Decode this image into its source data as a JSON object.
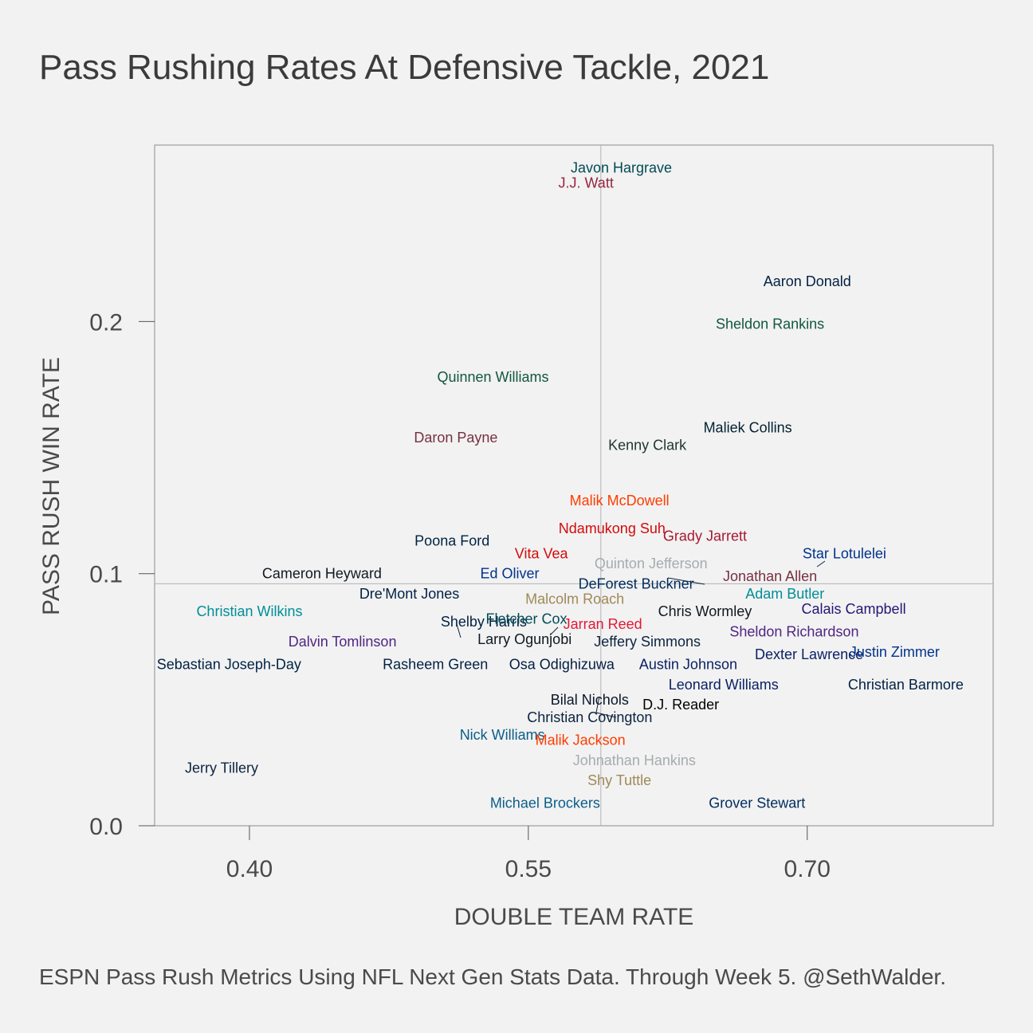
{
  "title": "Pass Rushing Rates At Defensive Tackle, 2021",
  "caption": "ESPN Pass Rush Metrics Using NFL Next Gen Stats Data. Through Week 5. @SethWalder.",
  "chart_data": {
    "type": "scatter",
    "title": "Pass Rushing Rates At Defensive Tackle, 2021",
    "xlabel": "DOUBLE TEAM RATE",
    "ylabel": "PASS RUSH WIN RATE",
    "xlim": [
      0.349,
      0.8
    ],
    "ylim": [
      0.0,
      0.27
    ],
    "xticks": [
      0.4,
      0.55,
      0.7
    ],
    "xtick_labels": [
      "0.40",
      "0.55",
      "0.70"
    ],
    "yticks": [
      0.0,
      0.1,
      0.2
    ],
    "ytick_labels": [
      "0.0",
      "0.1",
      "0.2"
    ],
    "reference_lines": {
      "x": 0.589,
      "y": 0.096
    },
    "points": [
      {
        "name": "Javon Hargrave",
        "x": 0.6,
        "y": 0.261,
        "color": "#004C54"
      },
      {
        "name": "J.J. Watt",
        "x": 0.581,
        "y": 0.255,
        "color": "#97233F"
      },
      {
        "name": "Aaron Donald",
        "x": 0.7,
        "y": 0.216,
        "color": "#002244"
      },
      {
        "name": "Sheldon Rankins",
        "x": 0.68,
        "y": 0.199,
        "color": "#125740"
      },
      {
        "name": "Quinnen Williams",
        "x": 0.531,
        "y": 0.178,
        "color": "#125740"
      },
      {
        "name": "Maliek Collins",
        "x": 0.668,
        "y": 0.158,
        "color": "#03202F"
      },
      {
        "name": "Daron Payne",
        "x": 0.511,
        "y": 0.154,
        "color": "#773141"
      },
      {
        "name": "Kenny Clark",
        "x": 0.614,
        "y": 0.151,
        "color": "#203731"
      },
      {
        "name": "Malik McDowell",
        "x": 0.599,
        "y": 0.129,
        "color": "#FF3C00"
      },
      {
        "name": "Ndamukong Suh",
        "x": 0.595,
        "y": 0.118,
        "color": "#D50A0A"
      },
      {
        "name": "Grady Jarrett",
        "x": 0.645,
        "y": 0.115,
        "color": "#A71930"
      },
      {
        "name": "Poona Ford",
        "x": 0.509,
        "y": 0.113,
        "color": "#002244"
      },
      {
        "name": "Vita Vea",
        "x": 0.557,
        "y": 0.108,
        "color": "#D50A0A"
      },
      {
        "name": "Quinton Jefferson",
        "x": 0.616,
        "y": 0.104,
        "color": "#A5ACAF"
      },
      {
        "name": "Star Lotulelei",
        "x": 0.72,
        "y": 0.108,
        "color": "#00338D"
      },
      {
        "name": "Cameron Heyward",
        "x": 0.439,
        "y": 0.1,
        "color": "#101820"
      },
      {
        "name": "Ed Oliver",
        "x": 0.54,
        "y": 0.1,
        "color": "#00338D"
      },
      {
        "name": "Jonathan Allen",
        "x": 0.68,
        "y": 0.099,
        "color": "#773141"
      },
      {
        "name": "DeForest Buckner",
        "x": 0.608,
        "y": 0.096,
        "color": "#002C5F"
      },
      {
        "name": "Dre'Mont Jones",
        "x": 0.486,
        "y": 0.092,
        "color": "#002244"
      },
      {
        "name": "Adam Butler",
        "x": 0.688,
        "y": 0.092,
        "color": "#008E97"
      },
      {
        "name": "Malcolm Roach",
        "x": 0.575,
        "y": 0.09,
        "color": "#9F8958"
      },
      {
        "name": "Christian Wilkins",
        "x": 0.4,
        "y": 0.085,
        "color": "#008E97"
      },
      {
        "name": "Chris Wormley",
        "x": 0.645,
        "y": 0.085,
        "color": "#101820"
      },
      {
        "name": "Calais Campbell",
        "x": 0.725,
        "y": 0.086,
        "color": "#241773"
      },
      {
        "name": "Shelby Harris",
        "x": 0.526,
        "y": 0.081,
        "color": "#002244"
      },
      {
        "name": "Fletcher Cox",
        "x": 0.549,
        "y": 0.082,
        "color": "#004C54"
      },
      {
        "name": "Jarran Reed",
        "x": 0.59,
        "y": 0.08,
        "color": "#E31837"
      },
      {
        "name": "Larry Ogunjobi",
        "x": 0.548,
        "y": 0.074,
        "color": "#101820"
      },
      {
        "name": "Dalvin Tomlinson",
        "x": 0.45,
        "y": 0.073,
        "color": "#4F2683"
      },
      {
        "name": "Sheldon Richardson",
        "x": 0.693,
        "y": 0.077,
        "color": "#4F2683"
      },
      {
        "name": "Jeffery Simmons",
        "x": 0.614,
        "y": 0.073,
        "color": "#0C2340"
      },
      {
        "name": "Dexter Lawrence",
        "x": 0.701,
        "y": 0.068,
        "color": "#0B2265"
      },
      {
        "name": "Justin Zimmer",
        "x": 0.747,
        "y": 0.069,
        "color": "#00338D"
      },
      {
        "name": "Sebastian Joseph-Day",
        "x": 0.389,
        "y": 0.064,
        "color": "#002244"
      },
      {
        "name": "Rasheem Green",
        "x": 0.5,
        "y": 0.064,
        "color": "#002244"
      },
      {
        "name": "Osa Odighizuwa",
        "x": 0.568,
        "y": 0.064,
        "color": "#041E42"
      },
      {
        "name": "Austin Johnson",
        "x": 0.636,
        "y": 0.064,
        "color": "#0B2265"
      },
      {
        "name": "Leonard Williams",
        "x": 0.655,
        "y": 0.056,
        "color": "#0B2265"
      },
      {
        "name": "Christian Barmore",
        "x": 0.753,
        "y": 0.056,
        "color": "#002244"
      },
      {
        "name": "Bilal Nichols",
        "x": 0.583,
        "y": 0.05,
        "color": "#0B162A"
      },
      {
        "name": "D.J. Reader",
        "x": 0.632,
        "y": 0.048,
        "color": "#000000"
      },
      {
        "name": "Christian Covington",
        "x": 0.583,
        "y": 0.043,
        "color": "#0C2340"
      },
      {
        "name": "Nick Williams",
        "x": 0.536,
        "y": 0.036,
        "color": "#0B5E8A"
      },
      {
        "name": "Malik Jackson",
        "x": 0.578,
        "y": 0.034,
        "color": "#FF3C00"
      },
      {
        "name": "Johnathan Hankins",
        "x": 0.607,
        "y": 0.026,
        "color": "#A5ACAF"
      },
      {
        "name": "Shy Tuttle",
        "x": 0.599,
        "y": 0.018,
        "color": "#9F8958"
      },
      {
        "name": "Jerry Tillery",
        "x": 0.385,
        "y": 0.023,
        "color": "#0C2340"
      },
      {
        "name": "Michael Brockers",
        "x": 0.559,
        "y": 0.009,
        "color": "#0B5E8A"
      },
      {
        "name": "Grover Stewart",
        "x": 0.673,
        "y": 0.009,
        "color": "#002C5F"
      }
    ]
  }
}
